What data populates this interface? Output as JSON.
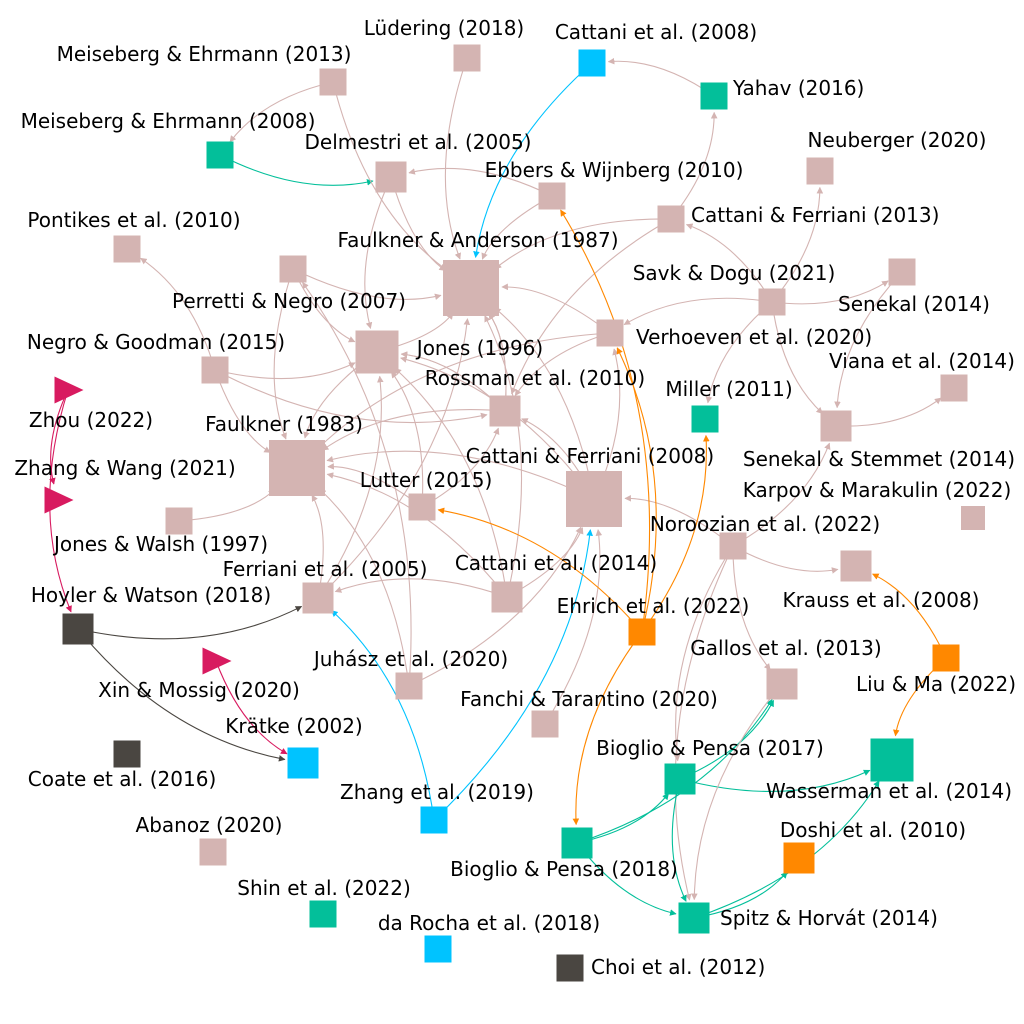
{
  "colors": {
    "pink": "#d4b4b2",
    "teal": "#03bf9a",
    "cyan": "#00c3ff",
    "orange": "#ff8800",
    "magenta": "#d81b60",
    "dark": "#4a4641",
    "edge_default": "#d4b4b2"
  },
  "nodes": [
    {
      "id": "ludering2018",
      "label": "Lüdering (2018)",
      "color": "pink",
      "shape": "square",
      "size": "s"
    },
    {
      "id": "cattani2008a",
      "label": "Cattani et al. (2008)",
      "color": "cyan",
      "shape": "square",
      "size": "s"
    },
    {
      "id": "meiseberg2013",
      "label": "Meiseberg & Ehrmann (2013)",
      "color": "pink",
      "shape": "square",
      "size": "s"
    },
    {
      "id": "yahav2016",
      "label": "Yahav (2016)",
      "color": "teal",
      "shape": "square",
      "size": "s"
    },
    {
      "id": "meiseberg2008",
      "label": "Meiseberg & Ehrmann (2008)",
      "color": "teal",
      "shape": "square",
      "size": "s"
    },
    {
      "id": "delmestri2005",
      "label": "Delmestri et al. (2005)",
      "color": "pink",
      "shape": "square",
      "size": "m"
    },
    {
      "id": "neuberger2020",
      "label": "Neuberger (2020)",
      "color": "pink",
      "shape": "square",
      "size": "s"
    },
    {
      "id": "ebbers2010",
      "label": "Ebbers & Wijnberg (2010)",
      "color": "pink",
      "shape": "square",
      "size": "s"
    },
    {
      "id": "cattaniferriani2013",
      "label": "Cattani & Ferriani (2013)",
      "color": "pink",
      "shape": "square",
      "size": "s"
    },
    {
      "id": "pontikes2010",
      "label": "Pontikes et al. (2010)",
      "color": "pink",
      "shape": "square",
      "size": "s"
    },
    {
      "id": "faulkneranderson1987",
      "label": "Faulkner & Anderson (1987)",
      "color": "pink",
      "shape": "square",
      "size": "xl"
    },
    {
      "id": "savk2021",
      "label": "Savk & Dogu (2021)",
      "color": "pink",
      "shape": "square",
      "size": "s"
    },
    {
      "id": "senekal2014",
      "label": "Senekal (2014)",
      "color": "pink",
      "shape": "square",
      "size": "s"
    },
    {
      "id": "pnode1",
      "label": "",
      "color": "pink",
      "shape": "square",
      "size": "s"
    },
    {
      "id": "perretti2007",
      "label": "Perretti & Negro (2007)",
      "color": "pink",
      "shape": "square",
      "size": "l"
    },
    {
      "id": "verhoeven2020",
      "label": "Verhoeven et al. (2020)",
      "color": "pink",
      "shape": "square",
      "size": "s"
    },
    {
      "id": "negro2015",
      "label": "Negro & Goodman (2015)",
      "color": "pink",
      "shape": "square",
      "size": "s"
    },
    {
      "id": "jones1996",
      "label": "Jones (1996)",
      "color": "pink",
      "shape": "square",
      "size": "m"
    },
    {
      "id": "viana2014",
      "label": "Viana et al. (2014)",
      "color": "pink",
      "shape": "square",
      "size": "s"
    },
    {
      "id": "rossman2010",
      "label": "Rossman et al. (2010)",
      "color": "pink",
      "shape": "square",
      "size": "m"
    },
    {
      "id": "miller2011",
      "label": "Miller (2011)",
      "color": "teal",
      "shape": "square",
      "size": "s"
    },
    {
      "id": "zhou2022",
      "label": "Zhou (2022)",
      "color": "magenta",
      "shape": "triangle",
      "size": "s"
    },
    {
      "id": "faulkner1983",
      "label": "Faulkner (1983)",
      "color": "pink",
      "shape": "square",
      "size": "xl"
    },
    {
      "id": "cattaniferriani2008",
      "label": "Cattani & Ferriani (2008)",
      "color": "pink",
      "shape": "square",
      "size": "xl"
    },
    {
      "id": "senekalstemmet2014",
      "label": "Senekal & Stemmet (2014)",
      "color": "pink",
      "shape": "square",
      "size": "m"
    },
    {
      "id": "zhangwang2021",
      "label": "Zhang & Wang (2021)",
      "color": "magenta",
      "shape": "triangle",
      "size": "s"
    },
    {
      "id": "lutter2015",
      "label": "Lutter (2015)",
      "color": "pink",
      "shape": "square",
      "size": "s"
    },
    {
      "id": "karpov2022",
      "label": "Karpov & Marakulin (2022)",
      "color": "pink",
      "shape": "square",
      "size": "xs"
    },
    {
      "id": "joneswalsh1997",
      "label": "Jones & Walsh (1997)",
      "color": "pink",
      "shape": "square",
      "size": "s"
    },
    {
      "id": "noroozian2022",
      "label": "Noroozian et al. (2022)",
      "color": "pink",
      "shape": "square",
      "size": "s"
    },
    {
      "id": "ferriani2005",
      "label": "Ferriani et al. (2005)",
      "color": "pink",
      "shape": "square",
      "size": "m"
    },
    {
      "id": "cattani2014",
      "label": "Cattani et al. (2014)",
      "color": "pink",
      "shape": "square",
      "size": "m"
    },
    {
      "id": "hoyler2018",
      "label": "Hoyler & Watson (2018)",
      "color": "dark",
      "shape": "square",
      "size": "m"
    },
    {
      "id": "ehrich2022",
      "label": "Ehrich et al. (2022)",
      "color": "orange",
      "shape": "square",
      "size": "s"
    },
    {
      "id": "krauss2008",
      "label": "Krauss et al. (2008)",
      "color": "pink",
      "shape": "square",
      "size": "m"
    },
    {
      "id": "xinmossig2020",
      "label": "Xin & Mossig (2020)",
      "color": "magenta",
      "shape": "triangle",
      "size": "s"
    },
    {
      "id": "juhasz2020",
      "label": "Juhász et al. (2020)",
      "color": "pink",
      "shape": "square",
      "size": "s"
    },
    {
      "id": "gallos2013",
      "label": "Gallos et al. (2013)",
      "color": "pink",
      "shape": "square",
      "size": "m"
    },
    {
      "id": "liuma2022",
      "label": "Liu & Ma (2022)",
      "color": "orange",
      "shape": "square",
      "size": "s"
    },
    {
      "id": "fanchi2020",
      "label": "Fanchi & Tarantino (2020)",
      "color": "pink",
      "shape": "square",
      "size": "s"
    },
    {
      "id": "kratke2002",
      "label": "Krätke (2002)",
      "color": "cyan",
      "shape": "square",
      "size": "m"
    },
    {
      "id": "coate2016",
      "label": "Coate et al. (2016)",
      "color": "dark",
      "shape": "square",
      "size": "s"
    },
    {
      "id": "bioglio2017",
      "label": "Bioglio & Pensa (2017)",
      "color": "teal",
      "shape": "square",
      "size": "m"
    },
    {
      "id": "wasserman2014",
      "label": "Wasserman et al. (2014)",
      "color": "teal",
      "shape": "square",
      "size": "l"
    },
    {
      "id": "zhang2019",
      "label": "Zhang et al. (2019)",
      "color": "cyan",
      "shape": "square",
      "size": "s"
    },
    {
      "id": "abanoz2020",
      "label": "Abanoz (2020)",
      "color": "pink",
      "shape": "square",
      "size": "s"
    },
    {
      "id": "doshi2010",
      "label": "Doshi et al. (2010)",
      "color": "orange",
      "shape": "square",
      "size": "m"
    },
    {
      "id": "bioglio2018",
      "label": "Bioglio & Pensa (2018)",
      "color": "teal",
      "shape": "square",
      "size": "m"
    },
    {
      "id": "shin2022",
      "label": "Shin et al. (2022)",
      "color": "teal",
      "shape": "square",
      "size": "s"
    },
    {
      "id": "spitz2014",
      "label": "Spitz & Horvát (2014)",
      "color": "teal",
      "shape": "square",
      "size": "m"
    },
    {
      "id": "darocha2018",
      "label": "da Rocha et al. (2018)",
      "color": "cyan",
      "shape": "square",
      "size": "s"
    },
    {
      "id": "choi2012",
      "label": "Choi et al. (2012)",
      "color": "dark",
      "shape": "square",
      "size": "s"
    }
  ],
  "edges": [
    {
      "from": "meiseberg2008",
      "to": "delmestri2005",
      "color": "teal"
    },
    {
      "from": "meiseberg2013",
      "to": "meiseberg2008",
      "color": "pink"
    },
    {
      "from": "meiseberg2013",
      "to": "faulkneranderson1987",
      "color": "pink"
    },
    {
      "from": "ludering2018",
      "to": "faulkneranderson1987",
      "color": "pink"
    },
    {
      "from": "cattani2008a",
      "to": "faulkneranderson1987",
      "color": "cyan"
    },
    {
      "from": "yahav2016",
      "to": "cattani2008a",
      "color": "pink"
    },
    {
      "from": "delmestri2005",
      "to": "faulkneranderson1987",
      "color": "pink"
    },
    {
      "from": "delmestri2005",
      "to": "perretti2007",
      "color": "pink"
    },
    {
      "from": "ebbers2010",
      "to": "faulkneranderson1987",
      "color": "pink"
    },
    {
      "from": "ebbers2010",
      "to": "delmestri2005",
      "color": "pink"
    },
    {
      "from": "cattaniferriani2013",
      "to": "faulkneranderson1987",
      "color": "pink"
    },
    {
      "from": "cattaniferriani2013",
      "to": "yahav2016",
      "color": "pink"
    },
    {
      "from": "cattaniferriani2013",
      "to": "rossman2010",
      "color": "pink"
    },
    {
      "from": "savk2021",
      "to": "cattaniferriani2013",
      "color": "pink"
    },
    {
      "from": "savk2021",
      "to": "neuberger2020",
      "color": "pink"
    },
    {
      "from": "savk2021",
      "to": "senekal2014",
      "color": "pink"
    },
    {
      "from": "savk2021",
      "to": "verhoeven2020",
      "color": "pink"
    },
    {
      "from": "savk2021",
      "to": "miller2011",
      "color": "pink"
    },
    {
      "from": "savk2021",
      "to": "senekalstemmet2014",
      "color": "pink"
    },
    {
      "from": "senekal2014",
      "to": "senekalstemmet2014",
      "color": "pink"
    },
    {
      "from": "pnode1",
      "to": "faulkneranderson1987",
      "color": "pink"
    },
    {
      "from": "pnode1",
      "to": "perretti2007",
      "color": "pink"
    },
    {
      "from": "pnode1",
      "to": "faulkner1983",
      "color": "pink"
    },
    {
      "from": "perretti2007",
      "to": "faulkneranderson1987",
      "color": "pink"
    },
    {
      "from": "perretti2007",
      "to": "faulkner1983",
      "color": "pink"
    },
    {
      "from": "negro2015",
      "to": "pontikes2010",
      "color": "pink"
    },
    {
      "from": "negro2015",
      "to": "perretti2007",
      "color": "pink"
    },
    {
      "from": "negro2015",
      "to": "faulkner1983",
      "color": "pink"
    },
    {
      "from": "negro2015",
      "to": "rossman2010",
      "color": "pink"
    },
    {
      "from": "verhoeven2020",
      "to": "faulkneranderson1987",
      "color": "pink"
    },
    {
      "from": "verhoeven2020",
      "to": "rossman2010",
      "color": "pink"
    },
    {
      "from": "verhoeven2020",
      "to": "faulkner1983",
      "color": "pink"
    },
    {
      "from": "jones1996",
      "to": "faulkneranderson1987",
      "color": "pink"
    },
    {
      "from": "jones1996",
      "to": "perretti2007",
      "color": "pink"
    },
    {
      "from": "rossman2010",
      "to": "faulkneranderson1987",
      "color": "pink"
    },
    {
      "from": "rossman2010",
      "to": "faulkner1983",
      "color": "pink"
    },
    {
      "from": "rossman2010",
      "to": "perretti2007",
      "color": "pink"
    },
    {
      "from": "lutter2015",
      "to": "faulkner1983",
      "color": "pink"
    },
    {
      "from": "lutter2015",
      "to": "perretti2007",
      "color": "pink"
    },
    {
      "from": "lutter2015",
      "to": "rossman2010",
      "color": "pink"
    },
    {
      "from": "cattaniferriani2008",
      "to": "faulkneranderson1987",
      "color": "pink"
    },
    {
      "from": "cattaniferriani2008",
      "to": "faulkner1983",
      "color": "pink"
    },
    {
      "from": "cattaniferriani2008",
      "to": "perretti2007",
      "color": "pink"
    },
    {
      "from": "cattaniferriani2008",
      "to": "rossman2010",
      "color": "pink"
    },
    {
      "from": "cattaniferriani2008",
      "to": "verhoeven2020",
      "color": "pink"
    },
    {
      "from": "senekalstemmet2014",
      "to": "viana2014",
      "color": "pink"
    },
    {
      "from": "noroozian2022",
      "to": "senekalstemmet2014",
      "color": "pink"
    },
    {
      "from": "noroozian2022",
      "to": "krauss2008",
      "color": "pink"
    },
    {
      "from": "noroozian2022",
      "to": "gallos2013",
      "color": "pink"
    },
    {
      "from": "noroozian2022",
      "to": "cattaniferriani2008",
      "color": "pink"
    },
    {
      "from": "noroozian2022",
      "to": "bioglio2017",
      "color": "pink"
    },
    {
      "from": "noroozian2022",
      "to": "spitz2014",
      "color": "pink"
    },
    {
      "from": "joneswalsh1997",
      "to": "faulkner1983",
      "color": "pink"
    },
    {
      "from": "ferriani2005",
      "to": "faulkner1983",
      "color": "pink"
    },
    {
      "from": "ferriani2005",
      "to": "perretti2007",
      "color": "pink"
    },
    {
      "from": "ferriani2005",
      "to": "faulkneranderson1987",
      "color": "pink"
    },
    {
      "from": "cattani2014",
      "to": "ferriani2005",
      "color": "pink"
    },
    {
      "from": "cattani2014",
      "to": "faulkner1983",
      "color": "pink"
    },
    {
      "from": "cattani2014",
      "to": "faulkneranderson1987",
      "color": "pink"
    },
    {
      "from": "cattani2014",
      "to": "cattaniferriani2008",
      "color": "pink"
    },
    {
      "from": "cattani2014",
      "to": "perretti2007",
      "color": "pink"
    },
    {
      "from": "juhasz2020",
      "to": "faulkner1983",
      "color": "pink"
    },
    {
      "from": "juhasz2020",
      "to": "cattaniferriani2008",
      "color": "pink"
    },
    {
      "from": "juhasz2020",
      "to": "pnode1",
      "color": "pink"
    },
    {
      "from": "fanchi2020",
      "to": "cattaniferriani2008",
      "color": "pink"
    },
    {
      "from": "hoyler2018",
      "to": "ferriani2005",
      "color": "dark"
    },
    {
      "from": "hoyler2018",
      "to": "kratke2002",
      "color": "dark"
    },
    {
      "from": "zhou2022",
      "to": "zhangwang2021",
      "color": "magenta"
    },
    {
      "from": "zhou2022",
      "to": "hoyler2018",
      "color": "magenta"
    },
    {
      "from": "xinmossig2020",
      "to": "kratke2002",
      "color": "magenta"
    },
    {
      "from": "zhang2019",
      "to": "ferriani2005",
      "color": "cyan"
    },
    {
      "from": "zhang2019",
      "to": "cattaniferriani2008",
      "color": "cyan"
    },
    {
      "from": "ehrich2022",
      "to": "lutter2015",
      "color": "orange"
    },
    {
      "from": "ehrich2022",
      "to": "ebbers2010",
      "color": "orange"
    },
    {
      "from": "ehrich2022",
      "to": "verhoeven2020",
      "color": "orange"
    },
    {
      "from": "ehrich2022",
      "to": "miller2011",
      "color": "orange"
    },
    {
      "from": "ehrich2022",
      "to": "bioglio2018",
      "color": "orange"
    },
    {
      "from": "liuma2022",
      "to": "krauss2008",
      "color": "orange"
    },
    {
      "from": "liuma2022",
      "to": "wasserman2014",
      "color": "orange"
    },
    {
      "from": "bioglio2018",
      "to": "gallos2013",
      "color": "teal"
    },
    {
      "from": "bioglio2018",
      "to": "bioglio2017",
      "color": "teal"
    },
    {
      "from": "bioglio2018",
      "to": "spitz2014",
      "color": "teal"
    },
    {
      "from": "bioglio2017",
      "to": "gallos2013",
      "color": "teal"
    },
    {
      "from": "bioglio2017",
      "to": "wasserman2014",
      "color": "teal"
    },
    {
      "from": "bioglio2017",
      "to": "spitz2014",
      "color": "teal"
    },
    {
      "from": "spitz2014",
      "to": "wasserman2014",
      "color": "teal"
    },
    {
      "from": "spitz2014",
      "to": "doshi2010",
      "color": "teal"
    },
    {
      "from": "gallos2013",
      "to": "spitz2014",
      "color": "pink"
    }
  ]
}
